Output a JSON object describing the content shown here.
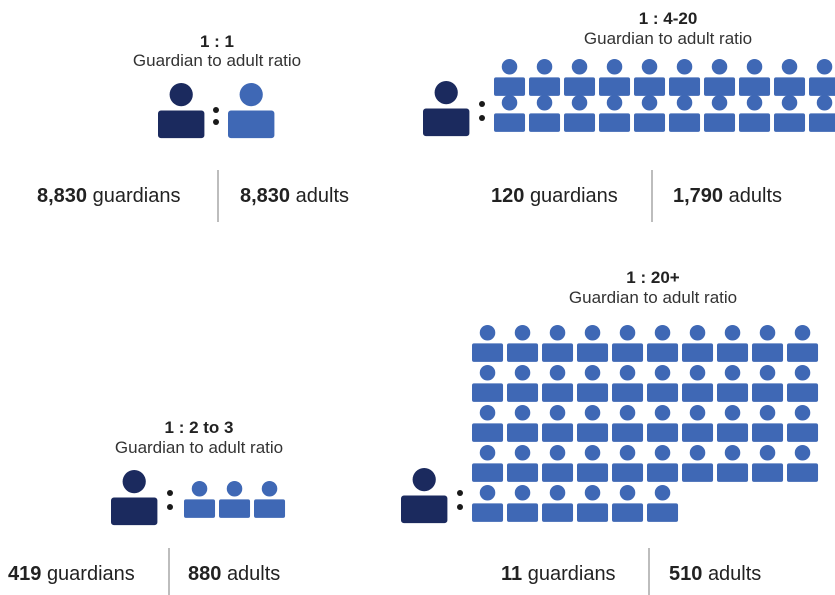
{
  "colors": {
    "guardian": "#1b2a5e",
    "adult": "#3f68b5",
    "divider": "#bdbdbd",
    "text": "#222222"
  },
  "panels": [
    {
      "id": "one-to-one",
      "ratio": "1 : 1",
      "caption": "Guardian to adult ratio",
      "guardian_count": "8,830",
      "guardian_word": "guardians",
      "adult_count": "8,830",
      "adult_word": "adults",
      "adult_icons": 1
    },
    {
      "id": "one-to-four-twenty",
      "ratio": "1 : 4-20",
      "caption": "Guardian to adult ratio",
      "guardian_count": "120",
      "guardian_word": "guardians",
      "adult_count": "1,790",
      "adult_word": "adults",
      "adult_icons": 20
    },
    {
      "id": "one-to-two-three",
      "ratio": "1 : 2 to 3",
      "caption": "Guardian to adult ratio",
      "guardian_count": "419",
      "guardian_word": "guardians",
      "adult_count": "880",
      "adult_word": "adults",
      "adult_icons": 3
    },
    {
      "id": "one-to-twenty-plus",
      "ratio": "1 : 20+",
      "caption": "Guardian to adult ratio",
      "guardian_count": "11",
      "guardian_word": "guardians",
      "adult_count": "510",
      "adult_word": "adults",
      "adult_icons": 46
    }
  ]
}
